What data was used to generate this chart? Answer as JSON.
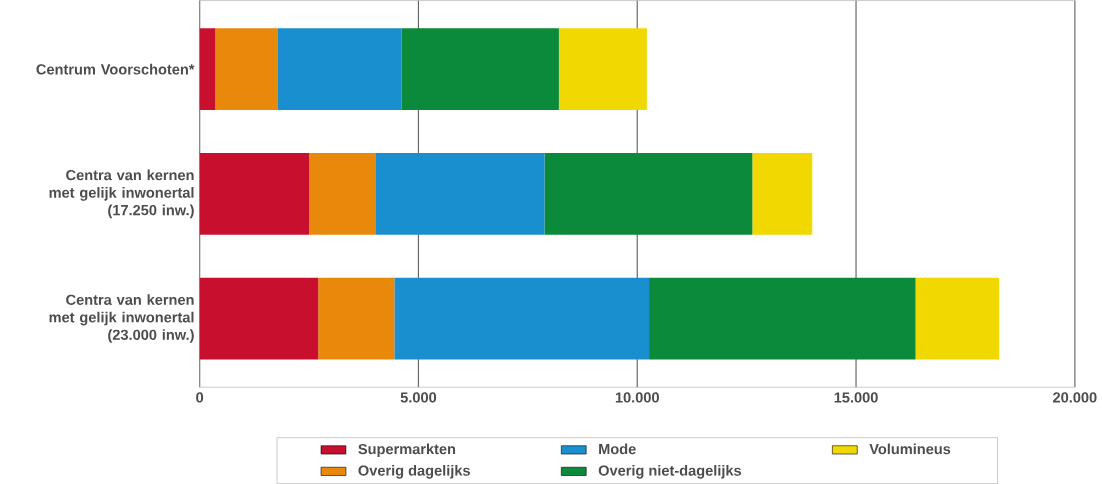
{
  "chart_data": {
    "type": "bar",
    "orientation": "horizontal",
    "stacked": true,
    "categories": [
      "Centrum Voorschoten*",
      "Centra van kernen met gelijk inwonertal (17.250 inw.)",
      "Centra van kernen met gelijk inwonertal (23.000 inw.)"
    ],
    "series": [
      {
        "name": "Supermarkten",
        "color": "#c8102e",
        "values": [
          360,
          2500,
          2710
        ]
      },
      {
        "name": "Overig dagelijks",
        "color": "#e8890c",
        "values": [
          1430,
          1530,
          1740
        ]
      },
      {
        "name": "Mode",
        "color": "#1a8fd0",
        "values": [
          2830,
          3850,
          5820
        ]
      },
      {
        "name": "Overig niet-dagelijks",
        "color": "#0a8a3a",
        "values": [
          3590,
          4750,
          6090
        ]
      },
      {
        "name": "Volumineus",
        "color": "#f0d800",
        "values": [
          2010,
          1370,
          1910
        ]
      }
    ],
    "xlim": [
      0,
      20000
    ],
    "xticks": [
      0,
      {
        "value": 5000,
        "label": "5.000"
      },
      {
        "value": 10000,
        "label": "10.000"
      },
      {
        "value": 15000,
        "label": "15.000"
      },
      {
        "value": 20000,
        "label": "20.000"
      }
    ],
    "grid": "x",
    "legend": "bottom"
  }
}
